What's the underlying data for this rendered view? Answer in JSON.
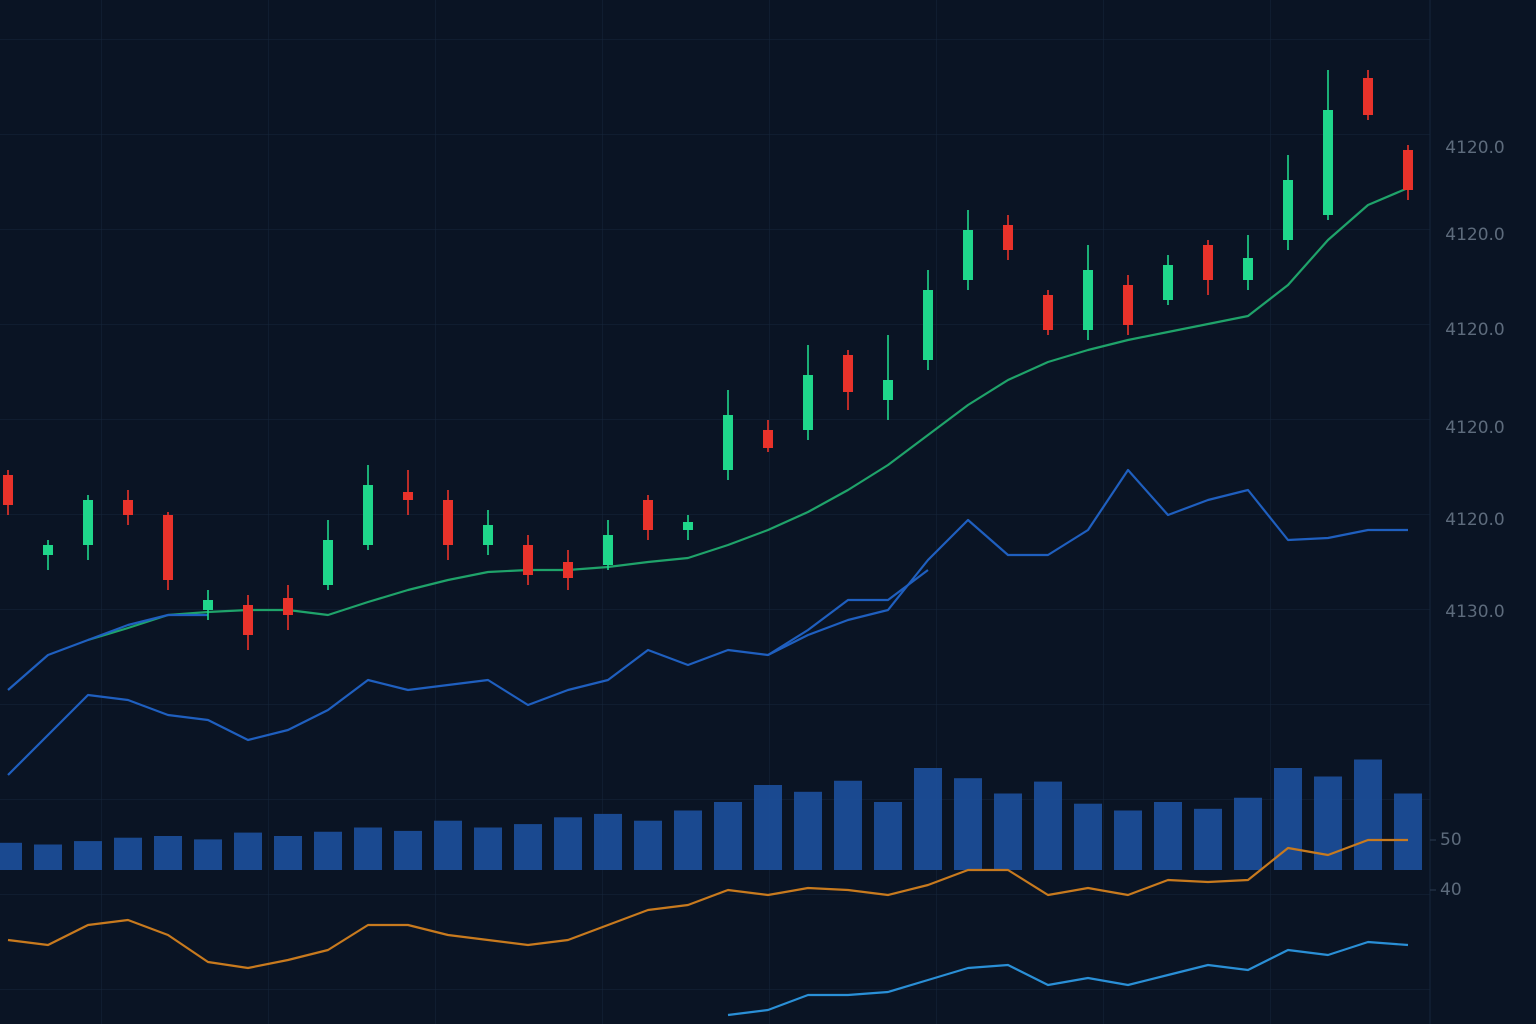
{
  "chart_data": [
    {
      "type": "candlestick",
      "open": [
        52.5,
        44.5,
        45.5,
        50.0,
        48.5,
        39.0,
        39.5,
        40.2,
        41.5,
        45.5,
        50.8,
        50.0,
        45.5,
        45.5,
        43.8,
        43.5,
        50.0,
        47.0,
        53.0,
        57.0,
        57.0,
        64.5,
        60.0,
        64.0,
        72.0,
        77.5,
        70.5,
        67.0,
        71.5,
        70.0,
        75.5,
        72.0,
        76.0,
        78.5,
        92.2,
        85.0
      ],
      "high": [
        53.0,
        46.0,
        50.5,
        51.0,
        48.8,
        41.0,
        40.5,
        41.5,
        48.0,
        53.5,
        53.0,
        51.0,
        49.0,
        46.5,
        45.0,
        48.0,
        50.5,
        48.5,
        61.0,
        58.0,
        65.5,
        65.0,
        66.5,
        73.0,
        79.0,
        78.5,
        71.0,
        75.5,
        72.5,
        74.5,
        76.0,
        76.5,
        84.5,
        93.0,
        93.0,
        85.5
      ],
      "low": [
        48.5,
        43.0,
        44.0,
        47.5,
        41.0,
        38.0,
        35.0,
        37.0,
        41.0,
        45.0,
        48.5,
        44.0,
        44.5,
        41.5,
        41.0,
        43.0,
        46.0,
        46.0,
        52.0,
        54.8,
        56.0,
        59.0,
        58.0,
        63.0,
        71.0,
        74.0,
        66.5,
        66.0,
        66.5,
        69.5,
        70.5,
        71.0,
        75.0,
        78.0,
        88.0,
        80.0
      ],
      "close": [
        49.5,
        45.5,
        50.0,
        48.5,
        42.0,
        40.0,
        36.5,
        38.5,
        46.0,
        51.5,
        50.0,
        45.5,
        47.5,
        42.5,
        42.2,
        46.5,
        47.0,
        47.8,
        58.5,
        55.2,
        62.5,
        60.8,
        62.0,
        71.0,
        77.0,
        75.0,
        67.0,
        73.0,
        67.5,
        73.5,
        72.0,
        74.2,
        82.0,
        89.0,
        88.5,
        81.0
      ],
      "up_color": "#1fd68a",
      "down_color": "#e8322a",
      "series": [
        {
          "color": "#1fa36a",
          "values": [
            null,
            null,
            36.0,
            37.2,
            38.5,
            38.8,
            39.0,
            39.0,
            38.5,
            39.8,
            41.0,
            42.0,
            42.8,
            43.0,
            43.0,
            43.3,
            43.8,
            44.2,
            45.5,
            47.0,
            48.8,
            51.0,
            53.5,
            56.5,
            59.5,
            62.0,
            63.8,
            65.0,
            66.0,
            66.8,
            67.6,
            68.4,
            71.5,
            76.0,
            79.5,
            81.2
          ]
        },
        {
          "color": "#1f5fbf",
          "values": [
            31.0,
            34.5,
            36.0,
            37.5,
            38.5,
            38.5,
            null,
            null,
            null,
            null,
            null,
            null,
            null,
            null,
            null,
            null,
            null,
            null,
            null,
            34.5,
            36.5,
            38.0,
            39.0,
            44.0,
            48.0,
            44.5,
            44.5,
            47.0,
            53.0,
            48.5,
            50.0,
            51.0,
            46.0,
            46.2,
            47.0,
            47.0
          ]
        },
        {
          "color": "#1f5fbf",
          "values": [
            22.5,
            26.5,
            30.5,
            30.0,
            28.5,
            28.0,
            26.0,
            27.0,
            29.0,
            32.0,
            31.0,
            31.5,
            32.0,
            29.5,
            31.0,
            32.0,
            35.0,
            33.5,
            35.0,
            34.5,
            37.0,
            40.0,
            40.0,
            43.0,
            null,
            null,
            null,
            null,
            null,
            null,
            null,
            null,
            null,
            null,
            null,
            null
          ]
        }
      ],
      "annotations": [
        "4120.0",
        "4120.0",
        "4120.0",
        "4120.0",
        "4120.0",
        "4130.0"
      ],
      "ylim": [
        -2.4,
        100
      ],
      "grid": true
    },
    {
      "type": "bar",
      "values": [
        32,
        30,
        34,
        38,
        40,
        36,
        44,
        40,
        45,
        50,
        46,
        58,
        50,
        54,
        62,
        66,
        58,
        70,
        80,
        100,
        92,
        105,
        80,
        120,
        108,
        90,
        104,
        78,
        70,
        80,
        72,
        85,
        120,
        110,
        130,
        90
      ],
      "color": "#1c4f9c",
      "ylim": [
        0,
        200
      ]
    },
    {
      "type": "line",
      "series": [
        {
          "color": "#c87a1e",
          "values": [
            30,
            29,
            33,
            34,
            31,
            25.6,
            24.4,
            26,
            28,
            33,
            33,
            31,
            30,
            29,
            30,
            33,
            36,
            37,
            40,
            39,
            40.4,
            40,
            39,
            41,
            44,
            44,
            39,
            40.4,
            39,
            42,
            41.6,
            42,
            48.4,
            47,
            50,
            50
          ]
        },
        {
          "color": "#2a8fd6",
          "values": [
            null,
            null,
            null,
            null,
            null,
            null,
            null,
            null,
            null,
            null,
            null,
            null,
            null,
            null,
            null,
            null,
            null,
            null,
            15,
            16,
            19,
            19,
            19.6,
            22,
            24.4,
            25,
            21,
            22.4,
            21,
            23,
            25,
            24,
            28,
            27,
            29.6,
            29
          ]
        }
      ],
      "ylim": [
        13.2,
        54
      ],
      "yticks": [
        40,
        50
      ]
    }
  ]
}
